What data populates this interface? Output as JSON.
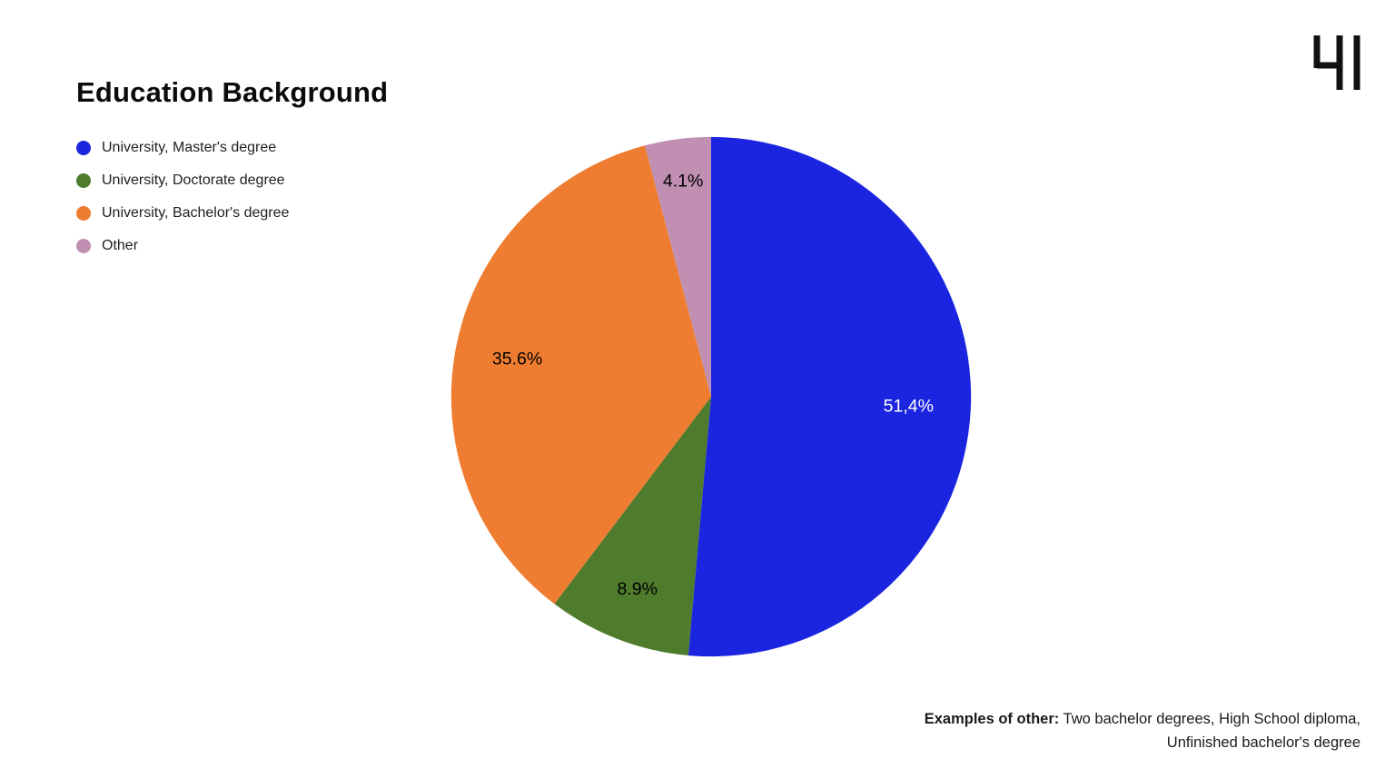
{
  "chart_data": {
    "type": "pie",
    "title": "Education Background",
    "legend_position": "top-left",
    "start_angle_deg": 0,
    "slices": [
      {
        "label": "University, Master's degree",
        "value": 51.4,
        "display": "51,4%",
        "color": "#1b25e0",
        "label_color": "#ffffff",
        "label_r": 0.76
      },
      {
        "label": "University, Doctorate degree",
        "value": 8.9,
        "display": "8.9%",
        "color": "#4e7b2c",
        "label_color": "#000000",
        "label_r": 0.79
      },
      {
        "label": "University, Bachelor's degree",
        "value": 35.6,
        "display": "35.6%",
        "color": "#ee7d31",
        "label_color": "#000000",
        "label_r": 0.76
      },
      {
        "label": "Other",
        "value": 4.1,
        "display": "4.1%",
        "color": "#c08fb2",
        "label_color": "#000000",
        "label_r": 0.84
      }
    ]
  },
  "footnote": {
    "bold": "Examples of other:",
    "rest": " Two bachelor degrees, High School diploma, Unfinished bachelor's degree"
  },
  "logo": {
    "name": "h-mark-logo",
    "color": "#111111"
  }
}
